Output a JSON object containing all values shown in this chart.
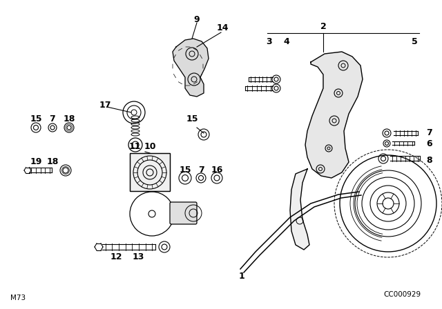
{
  "bg_color": "#ffffff",
  "fig_width": 6.4,
  "fig_height": 4.48,
  "dpi": 100,
  "bottom_left_text": "M73",
  "bottom_right_text": "CC000929",
  "line_color": "#000000",
  "text_color": "#000000",
  "font_size_label": 9,
  "font_size_small": 7.5
}
